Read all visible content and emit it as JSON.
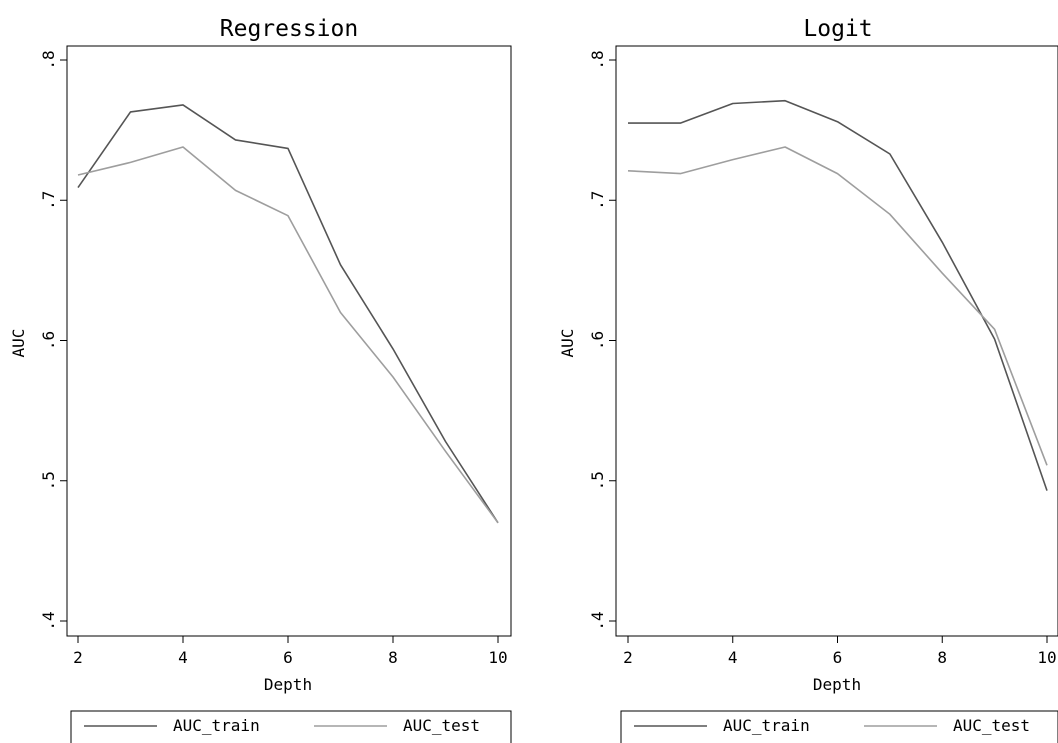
{
  "chart_data": [
    {
      "type": "line",
      "title": "Regression",
      "xlabel": "Depth",
      "ylabel": "AUC",
      "xlim": [
        2,
        10
      ],
      "ylim": [
        0.4,
        0.8
      ],
      "x_ticks": [
        "2",
        "4",
        "6",
        "8",
        "10"
      ],
      "y_ticks": [
        ".4",
        ".5",
        ".6",
        ".7",
        ".8"
      ],
      "x": [
        2,
        3,
        4,
        5,
        6,
        7,
        8,
        9,
        10
      ],
      "series": [
        {
          "name": "AUC_train",
          "color": "#555555",
          "values": [
            0.709,
            0.763,
            0.768,
            0.743,
            0.737,
            0.654,
            0.594,
            0.528,
            0.47
          ]
        },
        {
          "name": "AUC_test",
          "color": "#9e9e9e",
          "values": [
            0.718,
            0.727,
            0.738,
            0.707,
            0.689,
            0.62,
            0.574,
            0.521,
            0.47
          ]
        }
      ],
      "grid": false,
      "legend": "bottom"
    },
    {
      "type": "line",
      "title": "Logit",
      "xlabel": "Depth",
      "ylabel": "AUC",
      "xlim": [
        2,
        10
      ],
      "ylim": [
        0.4,
        0.8
      ],
      "x_ticks": [
        "2",
        "4",
        "6",
        "8",
        "10"
      ],
      "y_ticks": [
        ".4",
        ".5",
        ".6",
        ".7",
        ".8"
      ],
      "x": [
        2,
        3,
        4,
        5,
        6,
        7,
        8,
        9,
        10
      ],
      "series": [
        {
          "name": "AUC_train",
          "color": "#555555",
          "values": [
            0.755,
            0.755,
            0.769,
            0.771,
            0.756,
            0.733,
            0.67,
            0.601,
            0.493
          ]
        },
        {
          "name": "AUC_test",
          "color": "#9e9e9e",
          "values": [
            0.721,
            0.719,
            0.729,
            0.738,
            0.719,
            0.69,
            0.648,
            0.608,
            0.511
          ]
        }
      ],
      "grid": false,
      "legend": "bottom"
    }
  ]
}
